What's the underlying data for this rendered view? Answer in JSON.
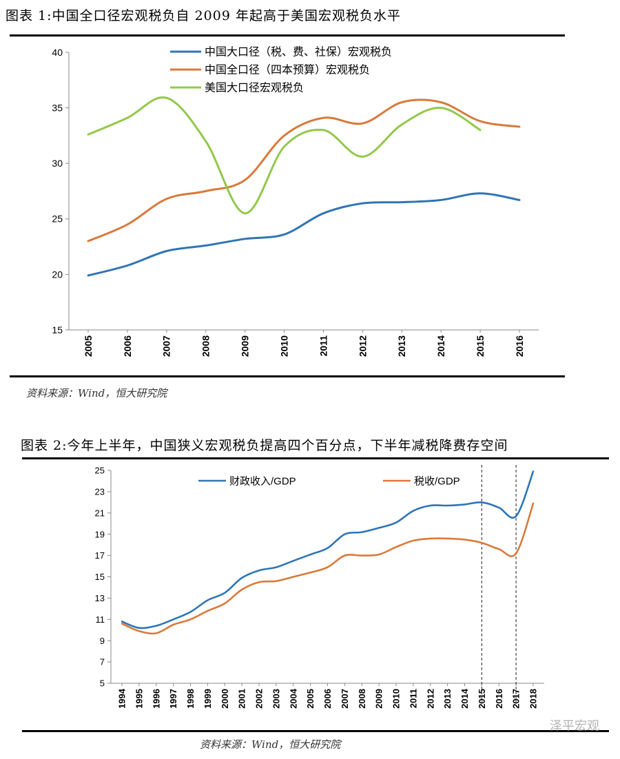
{
  "figure1": {
    "title": "图表 1:中国全口径宏观税负自 2009 年起高于美国宏观税负水平",
    "source": "资料来源：Wind，恒大研究院"
  },
  "figure2": {
    "title": "图表 2:今年上半年，中国狭义宏观税负提高四个百分点，下半年减税降费存空间",
    "source": "资料来源：Wind，恒大研究院"
  },
  "watermark": "泽平宏观",
  "chart_data": [
    {
      "type": "line",
      "categories": [
        "2005",
        "2006",
        "2007",
        "2008",
        "2009",
        "2010",
        "2011",
        "2012",
        "2013",
        "2014",
        "2015",
        "2016"
      ],
      "ylim": [
        15,
        40
      ],
      "yticks": [
        15,
        20,
        25,
        30,
        35,
        40
      ],
      "legend_position": "top",
      "grid": false,
      "series": [
        {
          "name": "中国大口径（税、费、社保）宏观税负",
          "color": "#2e74b5",
          "values": [
            19.9,
            20.8,
            22.1,
            22.6,
            23.2,
            23.6,
            25.5,
            26.4,
            26.5,
            26.7,
            27.3,
            26.7
          ]
        },
        {
          "name": "中国全口径（四本预算）宏观税负",
          "color": "#d9793a",
          "values": [
            23.0,
            24.5,
            26.8,
            27.5,
            28.5,
            32.5,
            34.1,
            33.6,
            35.5,
            35.5,
            33.8,
            33.3
          ]
        },
        {
          "name": "美国大口径宏观税负",
          "color": "#92c849",
          "values": [
            32.6,
            34.1,
            35.9,
            32.0,
            25.5,
            31.5,
            33.0,
            30.6,
            33.5,
            35.0,
            33.0,
            null
          ]
        }
      ]
    },
    {
      "type": "line",
      "categories": [
        "1994",
        "1995",
        "1996",
        "1997",
        "1998",
        "1999",
        "2000",
        "2001",
        "2002",
        "2003",
        "2004",
        "2005",
        "2006",
        "2007",
        "2008",
        "2009",
        "2010",
        "2011",
        "2012",
        "2013",
        "2014",
        "2015",
        "2016",
        "2017",
        "2018"
      ],
      "ylim": [
        5,
        25
      ],
      "yticks": [
        5,
        7,
        9,
        11,
        13,
        15,
        17,
        19,
        21,
        23,
        25
      ],
      "legend_position": "top",
      "grid": false,
      "dashed_markers": [
        "2015",
        "2017"
      ],
      "series": [
        {
          "name": "财政收入/GDP",
          "color": "#2e74b5",
          "values": [
            10.8,
            10.2,
            10.4,
            11.0,
            11.7,
            12.8,
            13.5,
            14.9,
            15.6,
            15.9,
            16.5,
            17.1,
            17.7,
            19.0,
            19.2,
            19.6,
            20.1,
            21.2,
            21.7,
            21.7,
            21.8,
            22.0,
            21.5,
            20.7,
            24.9
          ]
        },
        {
          "name": "税收/GDP",
          "color": "#d9793a",
          "values": [
            10.6,
            9.9,
            9.7,
            10.5,
            11.0,
            11.8,
            12.5,
            13.8,
            14.5,
            14.6,
            15.0,
            15.4,
            15.9,
            17.0,
            17.0,
            17.1,
            17.8,
            18.4,
            18.6,
            18.6,
            18.5,
            18.2,
            17.6,
            17.2,
            21.9
          ]
        }
      ]
    }
  ]
}
